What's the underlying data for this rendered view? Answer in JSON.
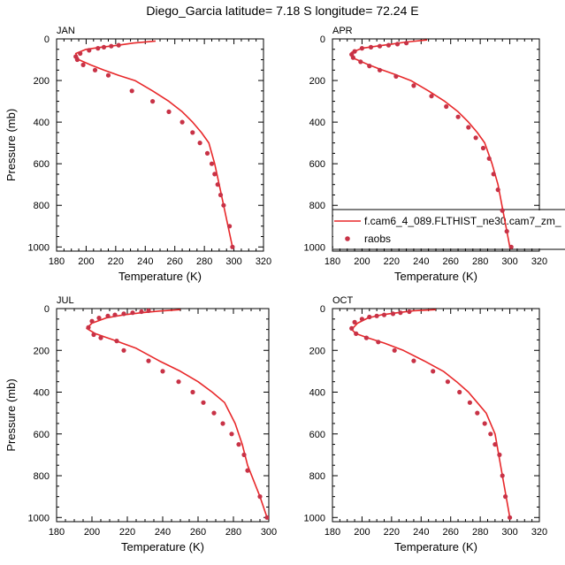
{
  "title": "Diego_Garcia  latitude= 7.18 S longitude= 72.24 E",
  "chart_data": {
    "type": "line",
    "xlabel": "Temperature (K)",
    "ylabel": "Pressure (mb)",
    "xticks": [
      180,
      200,
      220,
      240,
      260,
      280,
      300,
      320
    ],
    "yticks": [
      0,
      200,
      400,
      600,
      800,
      1000
    ],
    "legend": {
      "placement": "lower-right of APR panel",
      "model_label": "f.cam6_4_089.FLTHIST_ne30.cam7_zm_",
      "obs_label": "raobs"
    },
    "colors": {
      "model": "#e8282a",
      "obs": "#c83246"
    },
    "panels": [
      {
        "name": "JAN",
        "xlim": [
          180,
          320
        ],
        "ylim": [
          1020,
          0
        ],
        "model": {
          "T": [
            247,
            232,
            222,
            210,
            200,
            193,
            195,
            203,
            212,
            222,
            233,
            245,
            256,
            265,
            272,
            278,
            283,
            287,
            290,
            293,
            296,
            299
          ],
          "p": [
            10,
            20,
            30,
            40,
            50,
            70,
            100,
            125,
            150,
            175,
            200,
            250,
            300,
            350,
            400,
            450,
            500,
            600,
            700,
            800,
            900,
            1000
          ]
        },
        "raobs": {
          "T": [
            222,
            217,
            212,
            208,
            202,
            196,
            193,
            194,
            198,
            206,
            215,
            231,
            245,
            256,
            265,
            272,
            277,
            282,
            285,
            287,
            289,
            291,
            293,
            297,
            299
          ],
          "p": [
            30,
            35,
            40,
            45,
            55,
            70,
            85,
            100,
            125,
            150,
            175,
            250,
            300,
            350,
            400,
            450,
            500,
            550,
            600,
            650,
            700,
            750,
            800,
            900,
            1000
          ]
        }
      },
      {
        "name": "APR",
        "xlim": [
          180,
          320
        ],
        "ylim": [
          1020,
          0
        ],
        "model": {
          "T": [
            244,
            230,
            220,
            210,
            200,
            193,
            195,
            203,
            212,
            222,
            233,
            245,
            256,
            265,
            272,
            278,
            283,
            288,
            292,
            296,
            300
          ],
          "p": [
            5,
            15,
            25,
            35,
            45,
            65,
            95,
            120,
            145,
            170,
            200,
            250,
            300,
            350,
            400,
            450,
            500,
            600,
            700,
            850,
            1000
          ]
        },
        "raobs": {
          "T": [
            230,
            224,
            218,
            212,
            206,
            200,
            195,
            193,
            194,
            199,
            205,
            212,
            223,
            235,
            247,
            257,
            265,
            272,
            277,
            282,
            286,
            289,
            292,
            295,
            298,
            301
          ],
          "p": [
            20,
            25,
            30,
            35,
            40,
            45,
            60,
            75,
            90,
            110,
            130,
            150,
            180,
            225,
            275,
            325,
            375,
            425,
            475,
            525,
            575,
            650,
            725,
            825,
            925,
            1000
          ]
        }
      },
      {
        "name": "JUL",
        "xlim": [
          180,
          300
        ],
        "ylim": [
          1020,
          0
        ],
        "model": {
          "T": [
            250,
            238,
            228,
            218,
            208,
            200,
            197,
            202,
            212,
            225,
            238,
            250,
            260,
            268,
            275,
            281,
            285,
            288,
            295,
            299
          ],
          "p": [
            5,
            12,
            20,
            30,
            45,
            70,
            95,
            120,
            150,
            190,
            250,
            300,
            350,
            400,
            450,
            550,
            650,
            750,
            900,
            1000
          ]
        },
        "raobs": {
          "T": [
            232,
            228,
            223,
            218,
            213,
            209,
            204,
            200,
            198,
            201,
            205,
            214,
            218,
            232,
            240,
            249,
            257,
            263,
            269,
            274,
            279,
            283,
            286,
            288,
            295,
            299
          ],
          "p": [
            10,
            15,
            20,
            25,
            30,
            35,
            45,
            60,
            90,
            125,
            140,
            155,
            200,
            250,
            300,
            350,
            400,
            450,
            500,
            550,
            600,
            650,
            700,
            775,
            900,
            1000
          ]
        }
      },
      {
        "name": "OCT",
        "xlim": [
          180,
          320
        ],
        "ylim": [
          1020,
          0
        ],
        "model": {
          "T": [
            250,
            235,
            224,
            213,
            204,
            197,
            193,
            196,
            204,
            215,
            228,
            242,
            255,
            264,
            272,
            278,
            284,
            290,
            295,
            300
          ],
          "p": [
            5,
            10,
            20,
            30,
            45,
            70,
            100,
            120,
            140,
            165,
            200,
            250,
            300,
            350,
            400,
            450,
            500,
            600,
            800,
            1000
          ]
        },
        "raobs": {
          "T": [
            232,
            226,
            221,
            215,
            210,
            205,
            200,
            195,
            193,
            196,
            203,
            211,
            222,
            235,
            248,
            258,
            266,
            273,
            278,
            283,
            287,
            290,
            293,
            295,
            297,
            300
          ],
          "p": [
            15,
            20,
            25,
            30,
            35,
            40,
            50,
            65,
            95,
            120,
            140,
            160,
            200,
            250,
            300,
            350,
            400,
            450,
            500,
            550,
            600,
            650,
            700,
            800,
            900,
            1000
          ]
        }
      }
    ]
  }
}
